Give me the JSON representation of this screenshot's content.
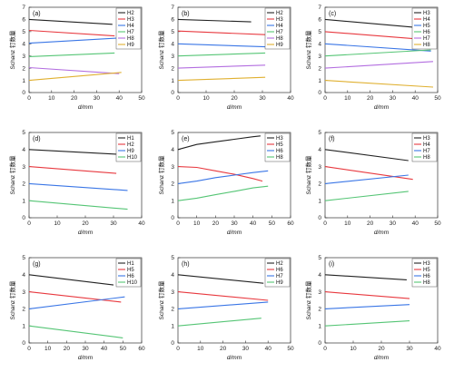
{
  "chart_data": [
    {
      "panel": "(a)",
      "type": "line",
      "ylabel": "Schanz 钉数量",
      "xlabel": "d/mm",
      "xlim": [
        0,
        50
      ],
      "ylim": [
        0,
        7
      ],
      "xticks": [
        0,
        10,
        20,
        30,
        40,
        50
      ],
      "yticks": [
        0,
        1,
        2,
        3,
        4,
        5,
        6,
        7
      ],
      "legend": "top-right",
      "series": [
        {
          "name": "H2",
          "color": "#222222",
          "x": [
            0,
            37
          ],
          "y": [
            6.0,
            5.6
          ]
        },
        {
          "name": "H3",
          "color": "#e8393f",
          "x": [
            0,
            38
          ],
          "y": [
            5.1,
            4.65
          ]
        },
        {
          "name": "H4",
          "color": "#3a76e6",
          "x": [
            0,
            42
          ],
          "y": [
            4.05,
            4.5
          ]
        },
        {
          "name": "H7",
          "color": "#55c575",
          "x": [
            0,
            38
          ],
          "y": [
            2.95,
            3.25
          ]
        },
        {
          "name": "H8",
          "color": "#b36ee0",
          "x": [
            0,
            40
          ],
          "y": [
            2.05,
            1.55
          ]
        },
        {
          "name": "H9",
          "color": "#e0b030",
          "x": [
            0,
            41
          ],
          "y": [
            1.0,
            1.65
          ]
        }
      ]
    },
    {
      "panel": "(b)",
      "type": "line",
      "ylabel": "Schanz 钉数量",
      "xlabel": "d/mm",
      "xlim": [
        0,
        40
      ],
      "ylim": [
        0,
        7
      ],
      "xticks": [
        0,
        10,
        20,
        30,
        40
      ],
      "yticks": [
        0,
        1,
        2,
        3,
        4,
        5,
        6,
        7
      ],
      "legend": "top-right",
      "series": [
        {
          "name": "H2",
          "color": "#222222",
          "x": [
            0,
            26
          ],
          "y": [
            6.0,
            5.8
          ]
        },
        {
          "name": "H3",
          "color": "#e8393f",
          "x": [
            0,
            31
          ],
          "y": [
            5.05,
            4.75
          ]
        },
        {
          "name": "H4",
          "color": "#3a76e6",
          "x": [
            0,
            31
          ],
          "y": [
            4.0,
            3.75
          ]
        },
        {
          "name": "H7",
          "color": "#55c575",
          "x": [
            0,
            31
          ],
          "y": [
            3.0,
            3.25
          ]
        },
        {
          "name": "H8",
          "color": "#b36ee0",
          "x": [
            0,
            31
          ],
          "y": [
            2.0,
            2.25
          ]
        },
        {
          "name": "H9",
          "color": "#e0b030",
          "x": [
            0,
            31
          ],
          "y": [
            1.0,
            1.25
          ]
        }
      ]
    },
    {
      "panel": "(c)",
      "type": "line",
      "ylabel": "Schanz 钉数量",
      "xlabel": "d/mm",
      "xlim": [
        0,
        50
      ],
      "ylim": [
        0,
        7
      ],
      "xticks": [
        0,
        10,
        20,
        30,
        40,
        50
      ],
      "yticks": [
        0,
        1,
        2,
        3,
        4,
        5,
        6,
        7
      ],
      "legend": "top-right",
      "series": [
        {
          "name": "H3",
          "color": "#222222",
          "x": [
            0,
            43
          ],
          "y": [
            6.0,
            5.3
          ]
        },
        {
          "name": "H4",
          "color": "#e8393f",
          "x": [
            0,
            48
          ],
          "y": [
            5.0,
            4.3
          ]
        },
        {
          "name": "H5",
          "color": "#3a76e6",
          "x": [
            0,
            47
          ],
          "y": [
            4.0,
            3.4
          ]
        },
        {
          "name": "H6",
          "color": "#55c575",
          "x": [
            0,
            47
          ],
          "y": [
            3.0,
            3.5
          ]
        },
        {
          "name": "H7",
          "color": "#b36ee0",
          "x": [
            0,
            48
          ],
          "y": [
            2.0,
            2.55
          ]
        },
        {
          "name": "H8",
          "color": "#e0b030",
          "x": [
            0,
            48
          ],
          "y": [
            1.0,
            0.45
          ]
        }
      ]
    },
    {
      "panel": "(d)",
      "type": "line",
      "ylabel": "Schanz 钉数量",
      "xlabel": "d/mm",
      "xlim": [
        0,
        40
      ],
      "ylim": [
        0,
        5
      ],
      "xticks": [
        0,
        10,
        20,
        30,
        40
      ],
      "yticks": [
        0,
        1,
        2,
        3,
        4,
        5
      ],
      "legend": "top-right",
      "series": [
        {
          "name": "H1",
          "color": "#222222",
          "x": [
            0,
            34
          ],
          "y": [
            4.0,
            3.7
          ]
        },
        {
          "name": "H2",
          "color": "#e8393f",
          "x": [
            0,
            31
          ],
          "y": [
            3.0,
            2.6
          ]
        },
        {
          "name": "H9",
          "color": "#3a76e6",
          "x": [
            0,
            35
          ],
          "y": [
            2.0,
            1.6
          ]
        },
        {
          "name": "H10",
          "color": "#55c575",
          "x": [
            0,
            35
          ],
          "y": [
            1.0,
            0.5
          ]
        }
      ]
    },
    {
      "panel": "(e)",
      "type": "line",
      "ylabel": "Schanz 钉数量",
      "xlabel": "d/mm",
      "xlim": [
        0,
        60
      ],
      "ylim": [
        0,
        5
      ],
      "xticks": [
        0,
        10,
        20,
        30,
        40,
        50,
        60
      ],
      "yticks": [
        0,
        1,
        2,
        3,
        4,
        5
      ],
      "legend": "top-right",
      "series": [
        {
          "name": "H3",
          "color": "#222222",
          "x": [
            0,
            10,
            20,
            30,
            40,
            44
          ],
          "y": [
            4.0,
            4.3,
            4.45,
            4.6,
            4.75,
            4.8
          ]
        },
        {
          "name": "H5",
          "color": "#e8393f",
          "x": [
            0,
            10,
            20,
            30,
            40,
            45
          ],
          "y": [
            3.0,
            2.95,
            2.75,
            2.55,
            2.3,
            2.15
          ]
        },
        {
          "name": "H6",
          "color": "#3a76e6",
          "x": [
            0,
            10,
            20,
            30,
            40,
            48
          ],
          "y": [
            2.0,
            2.15,
            2.35,
            2.5,
            2.65,
            2.75
          ]
        },
        {
          "name": "H8",
          "color": "#55c575",
          "x": [
            0,
            10,
            20,
            30,
            40,
            48
          ],
          "y": [
            1.0,
            1.15,
            1.35,
            1.55,
            1.75,
            1.85
          ]
        }
      ]
    },
    {
      "panel": "(f)",
      "type": "line",
      "ylabel": "Schanz 钉数量",
      "xlabel": "d/mm",
      "xlim": [
        0,
        50
      ],
      "ylim": [
        0,
        5
      ],
      "xticks": [
        0,
        10,
        20,
        30,
        40,
        50
      ],
      "yticks": [
        0,
        1,
        2,
        3,
        4,
        5
      ],
      "legend": "top-right",
      "series": [
        {
          "name": "H3",
          "color": "#222222",
          "x": [
            0,
            37
          ],
          "y": [
            4.0,
            3.35
          ]
        },
        {
          "name": "H4",
          "color": "#e8393f",
          "x": [
            0,
            39
          ],
          "y": [
            3.0,
            2.25
          ]
        },
        {
          "name": "H7",
          "color": "#3a76e6",
          "x": [
            0,
            37
          ],
          "y": [
            2.0,
            2.5
          ]
        },
        {
          "name": "H8",
          "color": "#55c575",
          "x": [
            0,
            37
          ],
          "y": [
            1.0,
            1.55
          ]
        }
      ]
    },
    {
      "panel": "(g)",
      "type": "line",
      "ylabel": "Schanz 钉数量",
      "xlabel": "d/mm",
      "xlim": [
        0,
        60
      ],
      "ylim": [
        0,
        5
      ],
      "xticks": [
        0,
        10,
        20,
        30,
        40,
        50,
        60
      ],
      "yticks": [
        0,
        1,
        2,
        3,
        4,
        5
      ],
      "legend": "top-right",
      "series": [
        {
          "name": "H1",
          "color": "#222222",
          "x": [
            0,
            45
          ],
          "y": [
            4.0,
            3.4
          ]
        },
        {
          "name": "H5",
          "color": "#e8393f",
          "x": [
            0,
            49
          ],
          "y": [
            3.0,
            2.4
          ]
        },
        {
          "name": "H6",
          "color": "#3a76e6",
          "x": [
            0,
            51
          ],
          "y": [
            2.0,
            2.7
          ]
        },
        {
          "name": "H10",
          "color": "#55c575",
          "x": [
            0,
            50
          ],
          "y": [
            1.0,
            0.3
          ]
        }
      ]
    },
    {
      "panel": "(h)",
      "type": "line",
      "ylabel": "Schanz 钉数量",
      "xlabel": "d/mm",
      "xlim": [
        0,
        50
      ],
      "ylim": [
        0,
        5
      ],
      "xticks": [
        0,
        10,
        20,
        30,
        40,
        50
      ],
      "yticks": [
        0,
        1,
        2,
        3,
        4,
        5
      ],
      "legend": "top-right",
      "series": [
        {
          "name": "H2",
          "color": "#222222",
          "x": [
            0,
            38
          ],
          "y": [
            4.0,
            3.5
          ]
        },
        {
          "name": "H6",
          "color": "#e8393f",
          "x": [
            0,
            40
          ],
          "y": [
            3.0,
            2.5
          ]
        },
        {
          "name": "H7",
          "color": "#3a76e6",
          "x": [
            0,
            40
          ],
          "y": [
            2.0,
            2.4
          ]
        },
        {
          "name": "H9",
          "color": "#55c575",
          "x": [
            0,
            37
          ],
          "y": [
            1.0,
            1.45
          ]
        }
      ]
    },
    {
      "panel": "(i)",
      "type": "line",
      "ylabel": "Schanz 钉数量",
      "xlabel": "d/mm",
      "xlim": [
        0,
        40
      ],
      "ylim": [
        0,
        5
      ],
      "xticks": [
        0,
        10,
        20,
        30,
        40
      ],
      "yticks": [
        0,
        1,
        2,
        3,
        4,
        5
      ],
      "legend": "top-right",
      "series": [
        {
          "name": "H3",
          "color": "#222222",
          "x": [
            0,
            29
          ],
          "y": [
            4.0,
            3.7
          ]
        },
        {
          "name": "H5",
          "color": "#e8393f",
          "x": [
            0,
            30
          ],
          "y": [
            3.0,
            2.6
          ]
        },
        {
          "name": "H6",
          "color": "#3a76e6",
          "x": [
            0,
            30
          ],
          "y": [
            2.0,
            2.25
          ]
        },
        {
          "name": "H8",
          "color": "#55c575",
          "x": [
            0,
            30
          ],
          "y": [
            1.0,
            1.3
          ]
        }
      ]
    }
  ]
}
